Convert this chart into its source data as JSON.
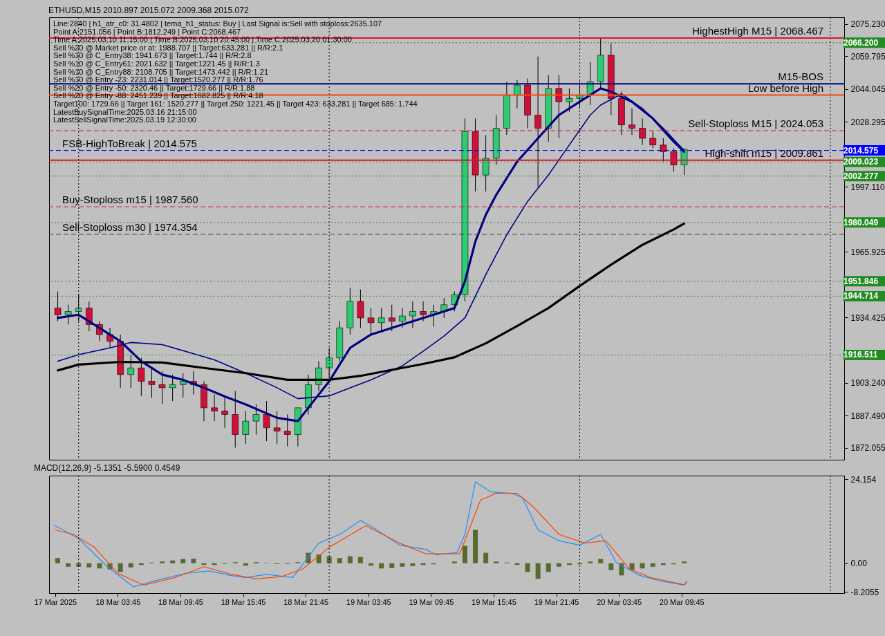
{
  "chart_data": [
    {
      "type": "candlestick",
      "title": "ETHUSD,M15  2010.897 2015.072 2009.368 2015.072",
      "annotations": [
        "Line:2840 | h1_atr_c0: 31.4802 | tema_h1_status: Buy | Last Signal is:Sell with stoploss:2635.107",
        "Point A:2151.056 | Point B:1812.249 | Point C:2068.467",
        "Time A:2025.03.10 11:15:00 | Time B:2025.03.10 20:45:00 | Time C:2025.03.20 01:30:00",
        "Sell %20 @ Market price or at: 1988.707 || Target:633.281 || R/R:2.1",
        "Sell %10 @ C_Entry38: 1941.673 || Target:1.744 || R/R:2.8",
        "Sell %10 @ C_Entry61: 2021.632 || Target:1221.45 || R/R:1.3",
        "Sell %10 @ C_Entry88: 2108.705 || Target:1473.442 || R/R:1.21",
        "Sell %10 @ Entry -23: 2231.014 || Target:1520.277 || R/R:1.76",
        "Sell %20 @ Entry -50: 2320.46 || Target:1729.66 || R/R:1.88",
        "Sell %20 @ Entry -88: 2451.239 || Target:1682.825 || R/R:4.18",
        "Target100: 1729.66 || Target 161: 1520.277 || Target 250: 1221.45 || Target 423: 633.281 || Target 685: 1.744",
        "LatestBuySignalTime:2025.03.16 21:15:00",
        "LatestSellSignalTime:2025.03.19 12:30:00"
      ],
      "x": [
        "2025-03-17T22:00",
        "2025-03-17T23:00",
        "2025-03-18T00:00",
        "2025-03-18T01:00",
        "2025-03-18T02:00",
        "2025-03-18T03:00",
        "2025-03-18T04:00",
        "2025-03-18T05:00",
        "2025-03-18T06:00",
        "2025-03-18T07:00",
        "2025-03-18T08:00",
        "2025-03-18T09:00",
        "2025-03-18T10:00",
        "2025-03-18T11:00",
        "2025-03-18T12:00",
        "2025-03-18T13:00",
        "2025-03-18T14:00",
        "2025-03-18T15:00",
        "2025-03-18T16:00",
        "2025-03-18T17:00",
        "2025-03-18T18:00",
        "2025-03-18T19:00",
        "2025-03-18T20:00",
        "2025-03-18T21:00",
        "2025-03-18T22:00",
        "2025-03-18T23:00",
        "2025-03-19T00:00",
        "2025-03-19T01:00",
        "2025-03-19T02:00",
        "2025-03-19T03:00",
        "2025-03-19T04:00",
        "2025-03-19T05:00",
        "2025-03-19T06:00",
        "2025-03-19T07:00",
        "2025-03-19T08:00",
        "2025-03-19T09:00",
        "2025-03-19T10:00",
        "2025-03-19T11:00",
        "2025-03-19T12:00",
        "2025-03-19T13:00",
        "2025-03-19T14:00",
        "2025-03-19T15:00",
        "2025-03-19T16:00",
        "2025-03-19T17:00",
        "2025-03-19T18:00",
        "2025-03-19T19:00",
        "2025-03-19T20:00",
        "2025-03-19T21:00",
        "2025-03-19T22:00",
        "2025-03-19T23:00",
        "2025-03-20T00:00",
        "2025-03-20T01:00",
        "2025-03-20T02:00",
        "2025-03-20T03:00",
        "2025-03-20T04:00",
        "2025-03-20T05:00",
        "2025-03-20T06:00",
        "2025-03-20T07:00",
        "2025-03-20T08:00",
        "2025-03-20T09:00",
        "2025-03-20T10:00"
      ],
      "ohlc": [
        [
          1939.0,
          1947.0,
          1932.7,
          1935.8
        ],
        [
          1935.8,
          1940.6,
          1931.1,
          1937.4
        ],
        [
          1937.4,
          1945.4,
          1932.7,
          1939.0
        ],
        [
          1939.0,
          1942.2,
          1927.9,
          1931.1
        ],
        [
          1931.1,
          1932.7,
          1923.1,
          1926.3
        ],
        [
          1926.3,
          1929.5,
          1919.9,
          1923.1
        ],
        [
          1923.1,
          1926.3,
          1900.8,
          1907.1
        ],
        [
          1907.1,
          1916.7,
          1900.8,
          1910.3
        ],
        [
          1910.3,
          1915.1,
          1896.9,
          1903.9
        ],
        [
          1903.9,
          1910.3,
          1896.0,
          1902.3
        ],
        [
          1902.3,
          1908.7,
          1892.8,
          1900.8
        ],
        [
          1900.8,
          1907.1,
          1894.4,
          1902.3
        ],
        [
          1902.3,
          1907.8,
          1896.0,
          1903.9
        ],
        [
          1903.9,
          1908.7,
          1897.6,
          1902.3
        ],
        [
          1902.3,
          1903.9,
          1884.8,
          1891.2
        ],
        [
          1891.2,
          1897.6,
          1884.8,
          1889.6
        ],
        [
          1889.6,
          1896.0,
          1881.6,
          1888.0
        ],
        [
          1888.0,
          1899.2,
          1872.1,
          1878.4
        ],
        [
          1878.4,
          1889.6,
          1873.7,
          1884.8
        ],
        [
          1884.8,
          1892.8,
          1878.4,
          1888.0
        ],
        [
          1888.0,
          1894.4,
          1875.2,
          1881.6
        ],
        [
          1881.6,
          1889.6,
          1873.7,
          1880.0
        ],
        [
          1880.0,
          1888.0,
          1872.7,
          1878.4
        ],
        [
          1878.4,
          1891.2,
          1872.7,
          1891.2
        ],
        [
          1891.2,
          1907.1,
          1888.0,
          1902.3
        ],
        [
          1902.3,
          1913.5,
          1899.2,
          1910.3
        ],
        [
          1910.3,
          1919.9,
          1905.5,
          1915.1
        ],
        [
          1915.1,
          1932.7,
          1913.5,
          1929.5
        ],
        [
          1929.5,
          1948.6,
          1926.3,
          1942.2
        ],
        [
          1942.2,
          1947.9,
          1929.5,
          1934.3
        ],
        [
          1934.3,
          1939.0,
          1926.3,
          1932.0
        ],
        [
          1932.0,
          1939.0,
          1927.9,
          1934.3
        ],
        [
          1934.3,
          1940.6,
          1927.9,
          1932.7
        ],
        [
          1932.7,
          1939.0,
          1929.5,
          1935.2
        ],
        [
          1935.2,
          1942.2,
          1929.5,
          1937.4
        ],
        [
          1937.4,
          1942.2,
          1932.7,
          1935.8
        ],
        [
          1935.8,
          1940.6,
          1930.1,
          1937.4
        ],
        [
          1937.4,
          1943.8,
          1934.3,
          1940.6
        ],
        [
          1940.6,
          1947.0,
          1937.4,
          1945.4
        ],
        [
          1945.4,
          2029.9,
          1942.2,
          2023.6
        ],
        [
          2023.6,
          2029.9,
          1994.9,
          2002.8
        ],
        [
          2002.8,
          2022.0,
          1994.9,
          2010.8
        ],
        [
          2010.8,
          2031.5,
          2007.6,
          2025.2
        ],
        [
          2025.2,
          2047.5,
          2022.0,
          2041.1
        ],
        [
          2041.1,
          2048.4,
          2034.7,
          2045.9
        ],
        [
          2045.9,
          2049.1,
          2025.2,
          2031.5
        ],
        [
          2031.5,
          2059.6,
          1997.1,
          2025.2
        ],
        [
          2025.2,
          2050.7,
          2018.8,
          2044.3
        ],
        [
          2044.3,
          2050.7,
          2020.4,
          2037.9
        ],
        [
          2037.9,
          2044.3,
          2033.1,
          2039.5
        ],
        [
          2039.5,
          2047.5,
          2034.7,
          2041.1
        ],
        [
          2041.1,
          2057.0,
          2036.3,
          2047.5
        ],
        [
          2047.5,
          2068.4,
          2044.3,
          2060.2
        ],
        [
          2060.2,
          2066.0,
          2031.5,
          2039.5
        ],
        [
          2039.5,
          2042.7,
          2022.0,
          2026.8
        ],
        [
          2026.8,
          2034.7,
          2022.0,
          2025.2
        ],
        [
          2025.2,
          2029.9,
          2017.2,
          2020.4
        ],
        [
          2020.4,
          2023.6,
          2015.6,
          2017.2
        ],
        [
          2017.2,
          2020.4,
          2009.2,
          2014.0
        ],
        [
          2014.0,
          2015.6,
          2004.4,
          2007.6
        ],
        [
          2007.6,
          2015.6,
          2002.8,
          2015.1
        ]
      ],
      "series": [
        {
          "type": "line",
          "color": "#000080",
          "x": [
            "2025-03-17T22:00",
            "2025-03-18T00:00",
            "2025-03-18T02:00",
            "2025-03-18T04:00",
            "2025-03-18T06:00",
            "2025-03-18T08:00",
            "2025-03-18T10:00",
            "2025-03-18T12:00",
            "2025-03-18T14:00",
            "2025-03-18T16:00",
            "2025-03-18T19:00",
            "2025-03-18T21:00",
            "2025-03-18T22:00",
            "2025-03-19T00:00",
            "2025-03-19T02:00",
            "2025-03-19T04:00",
            "2025-03-19T07:00",
            "2025-03-19T10:00",
            "2025-03-19T12:00",
            "2025-03-19T13:00",
            "2025-03-19T14:00",
            "2025-03-19T15:00",
            "2025-03-19T16:00",
            "2025-03-19T18:00",
            "2025-03-19T20:00",
            "2025-03-19T22:00",
            "2025-03-20T00:00",
            "2025-03-20T02:00",
            "2025-03-20T03:00",
            "2025-03-20T05:00",
            "2025-03-20T07:00",
            "2025-03-20T09:00",
            "2025-03-20T10:00"
          ],
          "values": [
            1934.3,
            1935.8,
            1929.5,
            1923.1,
            1913.5,
            1907.1,
            1904.6,
            1900.8,
            1896.6,
            1892.8,
            1886.4,
            1884.8,
            1891.2,
            1903.9,
            1919.9,
            1926.3,
            1931.1,
            1935.8,
            1939.0,
            1951.8,
            1970.9,
            1983.7,
            1993.3,
            2009.2,
            2020.4,
            2031.5,
            2037.9,
            2044.3,
            2042.7,
            2037.9,
            2029.9,
            2018.8,
            2014.0
          ]
        },
        {
          "type": "line",
          "color": "#00008b",
          "x": [
            "2025-03-17T22:00",
            "2025-03-18T00:00",
            "2025-03-18T03:00",
            "2025-03-18T05:00",
            "2025-03-18T08:00",
            "2025-03-18T13:00",
            "2025-03-18T16:00",
            "2025-03-18T19:00",
            "2025-03-18T21:00",
            "2025-03-19T00:00",
            "2025-03-19T04:00",
            "2025-03-19T07:00",
            "2025-03-19T09:00",
            "2025-03-19T11:00",
            "2025-03-19T13:00",
            "2025-03-19T15:00",
            "2025-03-19T17:00",
            "2025-03-19T19:00",
            "2025-03-19T21:00",
            "2025-03-19T23:00",
            "2025-03-20T01:00",
            "2025-03-20T02:00",
            "2025-03-20T04:00",
            "2025-03-20T06:00",
            "2025-03-20T08:00",
            "2025-03-20T10:00"
          ],
          "values": [
            1913.5,
            1916.7,
            1919.9,
            1922.5,
            1921.5,
            1914.2,
            1907.8,
            1900.8,
            1895.6,
            1896.9,
            1904.6,
            1911.3,
            1918.3,
            1925.6,
            1934.3,
            1955.0,
            1974.1,
            1990.1,
            2002.8,
            2017.2,
            2031.5,
            2036.3,
            2041.7,
            2034.7,
            2025.2,
            2014.6
          ]
        },
        {
          "type": "line",
          "color": "#000000",
          "x": [
            "2025-03-17T22:00",
            "2025-03-18T00:00",
            "2025-03-18T04:00",
            "2025-03-18T08:00",
            "2025-03-18T12:00",
            "2025-03-18T16:00",
            "2025-03-18T20:00",
            "2025-03-19T00:00",
            "2025-03-19T03:00",
            "2025-03-19T06:00",
            "2025-03-19T09:00",
            "2025-03-19T12:00",
            "2025-03-19T15:00",
            "2025-03-19T18:00",
            "2025-03-19T21:00",
            "2025-03-20T00:00",
            "2025-03-20T03:00",
            "2025-03-20T06:00",
            "2025-03-20T09:00",
            "2025-03-20T10:00"
          ],
          "values": [
            1909.1,
            1911.9,
            1913.2,
            1912.9,
            1910.3,
            1907.8,
            1904.6,
            1904.6,
            1906.5,
            1909.4,
            1912.2,
            1915.4,
            1922.1,
            1930.4,
            1939.0,
            1949.6,
            1959.8,
            1969.3,
            1976.7,
            1979.5
          ]
        }
      ],
      "xlim": [
        "2025-03-17T21:30",
        "2025-03-21T01:00"
      ],
      "ylim": [
        1866.3,
        2078.4
      ],
      "yticks": [
        {
          "value": 2075.23,
          "label": "2075.230"
        },
        2059.795,
        2044.045,
        2028.295,
        {
          "value": 1997.11,
          "label": "1997.110"
        },
        1965.925,
        1934.425,
        {
          "value": 1903.24,
          "label": "1903.240"
        },
        {
          "value": 1887.49,
          "label": "1887.490"
        },
        1872.055
      ],
      "tick_labels": "y",
      "ref_lines": [
        {
          "axis": "x",
          "value": "2025-03-18T00:00",
          "color": "#000000",
          "line_style": "dotted"
        },
        {
          "axis": "x",
          "value": "2025-03-19T00:00",
          "color": "#000000",
          "line_style": "dotted"
        },
        {
          "axis": "x",
          "value": "2025-03-20T00:00",
          "color": "#000000",
          "line_style": "dotted"
        },
        {
          "axis": "x",
          "value": "2025-03-21T00:00",
          "color": "#000000",
          "line_style": "dotted"
        },
        {
          "axis": "y",
          "value": 2068.467,
          "label": "HighestHigh   M15 | 2068.467",
          "color": "#dc143c",
          "line_style": "solid"
        },
        {
          "axis": "y",
          "value": 2014.575,
          "label": "FSB-HighToBreak | 2014.575",
          "color": "#191970",
          "line_style": "dashed"
        },
        {
          "axis": "y",
          "value": 2046.5,
          "label": "M15-BOS",
          "color": "#000080",
          "line_style": "solid"
        },
        {
          "axis": "y",
          "value": 1974.354,
          "label": "Sell-Stoploss m30 | 1974.354",
          "color": "#444444",
          "line_style": "dashed"
        },
        {
          "axis": "y",
          "value": 2041.1,
          "label": "Low before High",
          "color": "#ff4500",
          "line_style": "solid"
        },
        {
          "axis": "y",
          "value": 1987.56,
          "label": "Buy-Stoploss m15 | 1987.560",
          "color": "#dc143c",
          "line_style": "dashed"
        },
        {
          "axis": "y",
          "value": 2009.861,
          "label": "High-shift m15 | 2009.861",
          "color": "#dc143c",
          "line_style": "solid"
        },
        {
          "axis": "y",
          "value": 2024.053,
          "label": "Sell-Stoploss M15 | 2024.053",
          "color": "#dc143c",
          "line_style": "dashed"
        },
        {
          "axis": "y",
          "value": 2066.2,
          "label": "2066.200",
          "color": "#228b22",
          "line_style": "dotted"
        },
        {
          "axis": "y",
          "value": 2014.575,
          "label": "2014.575",
          "color": "#0000ff",
          "line_style": "dashed"
        },
        {
          "axis": "y",
          "value": 2009.023,
          "label": "2009.023",
          "color": "#228b22",
          "line_style": "dotted"
        },
        {
          "axis": "y",
          "value": 2002.277,
          "label": "2002.277",
          "color": "#228b22",
          "line_style": "dotted"
        },
        {
          "axis": "y",
          "value": 1980.049,
          "label": "1980.049",
          "color": "#228b22",
          "line_style": "dotted"
        },
        {
          "axis": "y",
          "value": 1951.846,
          "label": "1951.846",
          "color": "#228b22",
          "line_style": "dotted"
        },
        {
          "axis": "y",
          "value": 1944.714,
          "label": "1944.714",
          "color": "#228b22",
          "line_style": "dotted"
        },
        {
          "axis": "y",
          "value": 1916.511,
          "label": "1916.511",
          "color": "#228b22",
          "line_style": "dotted"
        }
      ]
    },
    {
      "type": "bar",
      "title": "MACD(12,26,9) -5.1351 -5.5900 0.4549",
      "x": [
        "2025-03-17T22:00",
        "2025-03-17T23:00",
        "2025-03-18T00:00",
        "2025-03-18T01:00",
        "2025-03-18T02:00",
        "2025-03-18T03:00",
        "2025-03-18T04:00",
        "2025-03-18T05:00",
        "2025-03-18T06:00",
        "2025-03-18T07:00",
        "2025-03-18T08:00",
        "2025-03-18T09:00",
        "2025-03-18T10:00",
        "2025-03-18T11:00",
        "2025-03-18T12:00",
        "2025-03-18T13:00",
        "2025-03-18T14:00",
        "2025-03-18T15:00",
        "2025-03-18T16:00",
        "2025-03-18T17:00",
        "2025-03-18T18:00",
        "2025-03-18T19:00",
        "2025-03-18T20:00",
        "2025-03-18T21:00",
        "2025-03-18T22:00",
        "2025-03-18T23:00",
        "2025-03-19T00:00",
        "2025-03-19T01:00",
        "2025-03-19T02:00",
        "2025-03-19T03:00",
        "2025-03-19T04:00",
        "2025-03-19T05:00",
        "2025-03-19T06:00",
        "2025-03-19T07:00",
        "2025-03-19T08:00",
        "2025-03-19T09:00",
        "2025-03-19T10:00",
        "2025-03-19T11:00",
        "2025-03-19T12:00",
        "2025-03-19T13:00",
        "2025-03-19T14:00",
        "2025-03-19T15:00",
        "2025-03-19T16:00",
        "2025-03-19T17:00",
        "2025-03-19T18:00",
        "2025-03-19T19:00",
        "2025-03-19T20:00",
        "2025-03-19T21:00",
        "2025-03-19T22:00",
        "2025-03-19T23:00",
        "2025-03-20T00:00",
        "2025-03-20T01:00",
        "2025-03-20T02:00",
        "2025-03-20T03:00",
        "2025-03-20T04:00",
        "2025-03-20T05:00",
        "2025-03-20T06:00",
        "2025-03-20T07:00",
        "2025-03-20T08:00",
        "2025-03-20T09:00",
        "2025-03-20T10:00"
      ],
      "series": [
        {
          "type": "bar",
          "color": "#556b2f",
          "values": [
            1.5,
            -1.0,
            -1.0,
            -1.2,
            -1.5,
            -1.8,
            -2.5,
            -1.2,
            -0.5,
            0.2,
            0.5,
            0.8,
            1.2,
            1.3,
            -0.5,
            -0.5,
            -0.2,
            0.3,
            -0.7,
            0.3,
            0.1,
            -0.2,
            -0.2,
            0.3,
            3.0,
            2.5,
            2.0,
            1.5,
            2.0,
            1.8,
            -0.7,
            -1.5,
            -1.4,
            -1.0,
            -0.8,
            -0.5,
            -0.3,
            0.0,
            0.5,
            5.0,
            9.6,
            3.0,
            0.5,
            0.2,
            -0.5,
            -2.5,
            -4.5,
            -2.5,
            -1.0,
            -0.5,
            -0.3,
            0.5,
            1.2,
            -2.0,
            -3.5,
            -2.0,
            -1.5,
            -1.0,
            -0.5,
            -0.3,
            0.5
          ]
        },
        {
          "type": "line",
          "color": "#1e90ff",
          "x": [
            "2025-03-17T21:45",
            "2025-03-18T00:00",
            "2025-03-18T02:45",
            "2025-03-18T05:15",
            "2025-03-18T07:45",
            "2025-03-18T10:15",
            "2025-03-18T12:30",
            "2025-03-18T14:30",
            "2025-03-18T16:00",
            "2025-03-18T18:00",
            "2025-03-18T20:30",
            "2025-03-18T23:00",
            "2025-03-19T01:00",
            "2025-03-19T03:00",
            "2025-03-19T04:15",
            "2025-03-19T06:45",
            "2025-03-19T09:15",
            "2025-03-19T10:15",
            "2025-03-19T12:15",
            "2025-03-19T13:00",
            "2025-03-19T14:00",
            "2025-03-19T15:30",
            "2025-03-19T17:30",
            "2025-03-19T18:30",
            "2025-03-19T20:00",
            "2025-03-19T22:00",
            "2025-03-20T00:00",
            "2025-03-20T02:00",
            "2025-03-20T03:30",
            "2025-03-20T05:45",
            "2025-03-20T07:45",
            "2025-03-20T10:00",
            "2025-03-20T10:15"
          ],
          "values": [
            10.8,
            7.1,
            -1.0,
            -6.8,
            -4.7,
            -2.9,
            -2.2,
            -3.5,
            -4.1,
            -3.2,
            -4.1,
            5.8,
            8.3,
            12.3,
            10.2,
            5.2,
            4.0,
            2.4,
            3.1,
            8.3,
            23.4,
            20.5,
            20.1,
            18.9,
            9.6,
            6.5,
            5.2,
            8.3,
            0.2,
            -3.5,
            -5.1,
            -6.3,
            -5.1
          ]
        },
        {
          "type": "line",
          "color": "#ff4500",
          "x": [
            "2025-03-17T21:45",
            "2025-03-17T23:30",
            "2025-03-18T01:30",
            "2025-03-18T03:45",
            "2025-03-18T06:15",
            "2025-03-18T09:15",
            "2025-03-18T12:00",
            "2025-03-18T14:30",
            "2025-03-18T17:00",
            "2025-03-18T19:30",
            "2025-03-18T21:30",
            "2025-03-19T00:00",
            "2025-03-19T03:30",
            "2025-03-19T06:45",
            "2025-03-19T09:15",
            "2025-03-19T12:30",
            "2025-03-19T14:30",
            "2025-03-19T16:00",
            "2025-03-19T18:00",
            "2025-03-19T19:30",
            "2025-03-19T22:00",
            "2025-03-20T00:30",
            "2025-03-20T02:30",
            "2025-03-20T04:45",
            "2025-03-20T06:45",
            "2025-03-20T10:00",
            "2025-03-20T10:15"
          ],
          "values": [
            9.6,
            8.3,
            4.6,
            -2.9,
            -6.3,
            -4.1,
            -1.0,
            -3.1,
            -4.5,
            -3.8,
            -1.6,
            4.6,
            10.8,
            5.8,
            2.7,
            2.7,
            18.2,
            20.1,
            20.1,
            16.4,
            8.3,
            5.8,
            6.5,
            -1.6,
            -4.1,
            -6.2,
            -5.6
          ]
        }
      ],
      "xlim": [
        "2025-03-17T21:30",
        "2025-03-21T01:00"
      ],
      "xticks": [
        {
          "value": "2025-03-17T21:45",
          "label": "17 Mar 2025"
        },
        {
          "value": "2025-03-18T03:45",
          "label": "18 Mar 03:45"
        },
        {
          "value": "2025-03-18T09:45",
          "label": "18 Mar 09:45"
        },
        {
          "value": "2025-03-18T15:45",
          "label": "18 Mar 15:45"
        },
        {
          "value": "2025-03-18T21:45",
          "label": "18 Mar 21:45"
        },
        {
          "value": "2025-03-19T03:45",
          "label": "19 Mar 03:45"
        },
        {
          "value": "2025-03-19T09:45",
          "label": "19 Mar 09:45"
        },
        {
          "value": "2025-03-19T15:45",
          "label": "19 Mar 15:45"
        },
        {
          "value": "2025-03-19T21:45",
          "label": "19 Mar 21:45"
        },
        {
          "value": "2025-03-20T03:45",
          "label": "20 Mar 03:45"
        },
        {
          "value": "2025-03-20T09:45",
          "label": "20 Mar 09:45"
        }
      ],
      "ylim": [
        -8.6,
        25.2
      ],
      "yticks": [
        24.154,
        {
          "value": 0,
          "label": "0.00"
        },
        -8.2055
      ],
      "ref_lines": [
        {
          "axis": "x",
          "value": "2025-03-18T00:00",
          "color": "#000000",
          "line_style": "dotted"
        },
        {
          "axis": "x",
          "value": "2025-03-19T00:00",
          "color": "#000000",
          "line_style": "dotted"
        },
        {
          "axis": "x",
          "value": "2025-03-20T00:00",
          "color": "#000000",
          "line_style": "dotted"
        },
        {
          "axis": "x",
          "value": "2025-03-21T00:00",
          "color": "#000000",
          "line_style": "dotted"
        }
      ]
    }
  ]
}
